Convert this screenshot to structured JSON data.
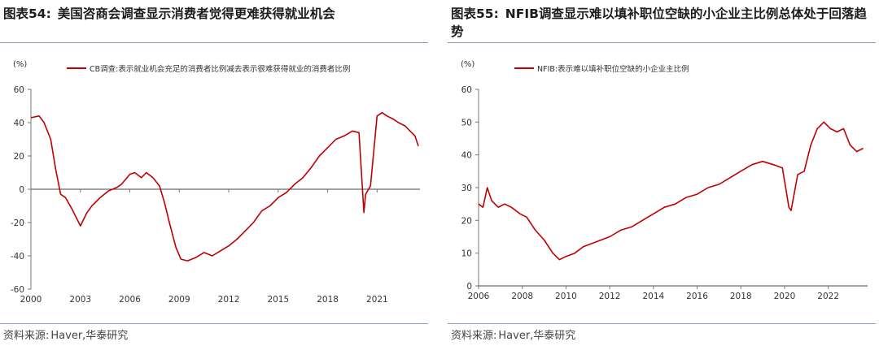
{
  "left": {
    "figure_no": "图表54:",
    "title": "美国咨商会调查显示消费者觉得更难获得就业机会",
    "source_label": "资料来源:",
    "source_text": "Haver,华泰研究",
    "chart_data": {
      "type": "line",
      "unit_label": "(%)",
      "legend": "CB调查:表示就业机会充足的消费者比例减去表示很难获得就业的消费者比例",
      "color": "#c00000",
      "xlim": [
        2000,
        2023.6
      ],
      "ylim": [
        -60,
        60
      ],
      "y_ticks": [
        -60,
        -40,
        -20,
        0,
        20,
        40,
        60
      ],
      "x_ticks": [
        2000,
        2003,
        2006,
        2009,
        2012,
        2015,
        2018,
        2021
      ],
      "x": [
        2000,
        2000.5,
        2000.8,
        2001.2,
        2001.5,
        2001.8,
        2002.1,
        2002.5,
        2003.0,
        2003.4,
        2003.7,
        2004.2,
        2004.7,
        2005.2,
        2005.5,
        2006.0,
        2006.3,
        2006.7,
        2007.0,
        2007.4,
        2007.8,
        2008.1,
        2008.4,
        2008.8,
        2009.1,
        2009.5,
        2010.0,
        2010.5,
        2011.0,
        2011.5,
        2012.0,
        2012.5,
        2013.0,
        2013.5,
        2014.0,
        2014.5,
        2015.0,
        2015.5,
        2016.0,
        2016.5,
        2017.0,
        2017.5,
        2018.0,
        2018.5,
        2019.0,
        2019.5,
        2019.9,
        2020.2,
        2020.3,
        2020.6,
        2021.0,
        2021.3,
        2021.6,
        2022.0,
        2022.3,
        2022.7,
        2023.0,
        2023.3,
        2023.5
      ],
      "values": [
        43,
        44,
        40,
        30,
        12,
        -3,
        -5,
        -12,
        -22,
        -14,
        -10,
        -5,
        -1,
        1,
        3,
        9,
        10,
        7,
        10,
        7,
        2,
        -8,
        -20,
        -35,
        -42,
        -43,
        -41,
        -38,
        -40,
        -37,
        -34,
        -30,
        -25,
        -20,
        -13,
        -10,
        -5,
        -2,
        3,
        7,
        13,
        20,
        25,
        30,
        32,
        35,
        34,
        -14,
        -3,
        2,
        44,
        46,
        44,
        42,
        40,
        38,
        35,
        32,
        26
      ]
    }
  },
  "right": {
    "figure_no": "图表55:",
    "title": "NFIB调查显示难以填补职位空缺的小企业主比例总体处于回落趋势",
    "source_label": "资料来源:",
    "source_text": "Haver,华泰研究",
    "chart_data": {
      "type": "line",
      "unit_label": "(%)",
      "legend": "NFIB:表示难以填补职位空缺的小企业主比例",
      "color": "#c00000",
      "xlim": [
        2006,
        2023.8
      ],
      "ylim": [
        0,
        60
      ],
      "y_ticks": [
        0,
        10,
        20,
        30,
        40,
        50,
        60
      ],
      "x_ticks": [
        2006,
        2008,
        2010,
        2012,
        2014,
        2016,
        2018,
        2020,
        2022
      ],
      "x": [
        2006.0,
        2006.2,
        2006.4,
        2006.6,
        2006.9,
        2007.2,
        2007.5,
        2007.9,
        2008.2,
        2008.6,
        2009.0,
        2009.4,
        2009.7,
        2010.0,
        2010.4,
        2010.8,
        2011.2,
        2011.6,
        2012.0,
        2012.5,
        2013.0,
        2013.5,
        2014.0,
        2014.5,
        2015.0,
        2015.5,
        2016.0,
        2016.5,
        2017.0,
        2017.5,
        2018.0,
        2018.5,
        2019.0,
        2019.5,
        2019.9,
        2020.2,
        2020.3,
        2020.6,
        2020.9,
        2021.2,
        2021.5,
        2021.8,
        2022.1,
        2022.4,
        2022.7,
        2023.0,
        2023.3,
        2023.6
      ],
      "values": [
        25,
        24,
        30,
        26,
        24,
        25,
        24,
        22,
        21,
        17,
        14,
        10,
        8,
        9,
        10,
        12,
        13,
        14,
        15,
        17,
        18,
        20,
        22,
        24,
        25,
        27,
        28,
        30,
        31,
        33,
        35,
        37,
        38,
        37,
        36,
        24,
        23,
        34,
        35,
        43,
        48,
        50,
        48,
        47,
        48,
        43,
        41,
        42
      ]
    }
  }
}
